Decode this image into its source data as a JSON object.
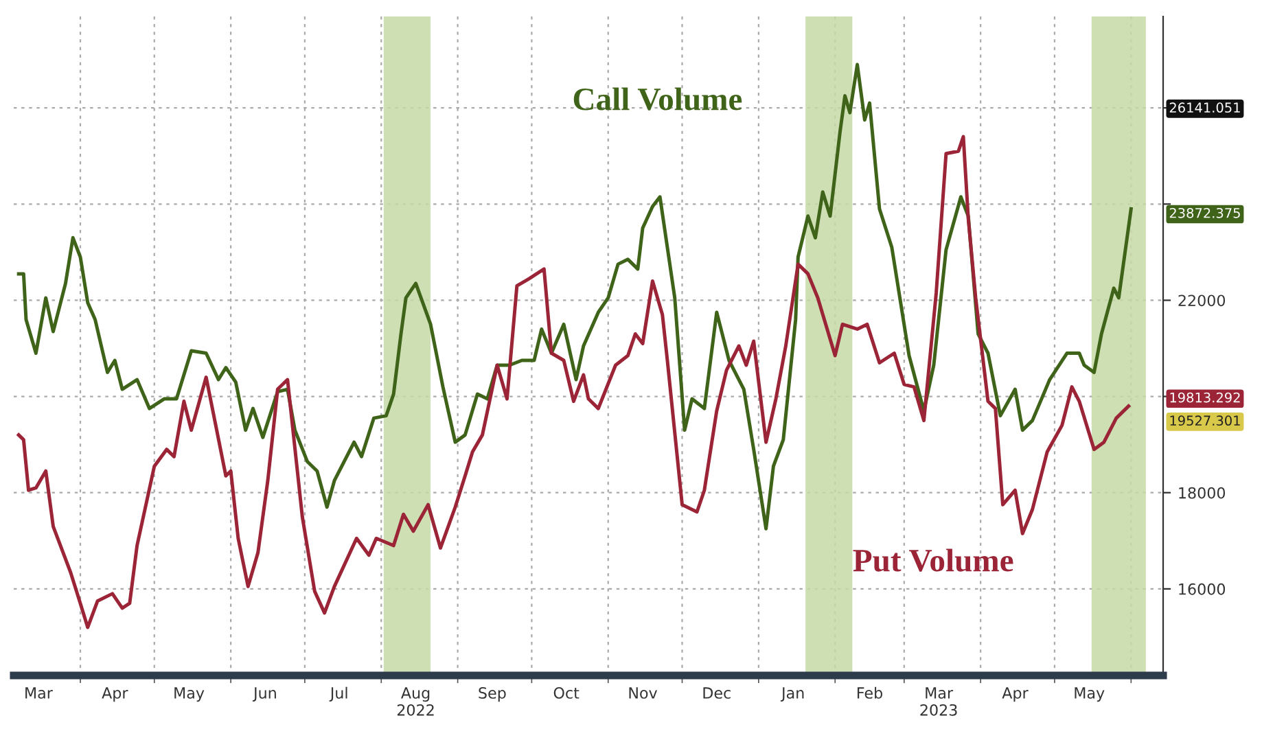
{
  "chart_data": {
    "type": "line",
    "series": [
      {
        "name": "Call Volume",
        "color": "#3f6419",
        "x": [
          "2022-03-07",
          "2022-03-09",
          "2022-03-10",
          "2022-03-14",
          "2022-03-18",
          "2022-03-21",
          "2022-03-26",
          "2022-03-29",
          "2022-04-01",
          "2022-04-04",
          "2022-04-07",
          "2022-04-12",
          "2022-04-15",
          "2022-04-18",
          "2022-04-24",
          "2022-04-29",
          "2022-05-05",
          "2022-05-10",
          "2022-05-16",
          "2022-05-22",
          "2022-05-27",
          "2022-05-30",
          "2022-06-03",
          "2022-06-07",
          "2022-06-10",
          "2022-06-14",
          "2022-06-20",
          "2022-06-24",
          "2022-06-27",
          "2022-07-02",
          "2022-07-06",
          "2022-07-10",
          "2022-07-13",
          "2022-07-21",
          "2022-07-24",
          "2022-07-29",
          "2022-08-03",
          "2022-08-06",
          "2022-08-09",
          "2022-08-11",
          "2022-08-15",
          "2022-08-21",
          "2022-08-26",
          "2022-08-31",
          "2022-09-04",
          "2022-09-09",
          "2022-09-13",
          "2022-09-17",
          "2022-09-22",
          "2022-09-27",
          "2022-10-02",
          "2022-10-05",
          "2022-10-09",
          "2022-10-14",
          "2022-10-19",
          "2022-10-22",
          "2022-10-28",
          "2022-11-01",
          "2022-11-05",
          "2022-11-09",
          "2022-11-13",
          "2022-11-15",
          "2022-11-19",
          "2022-11-22",
          "2022-11-25",
          "2022-11-28",
          "2022-12-02",
          "2022-12-05",
          "2022-12-10",
          "2022-12-15",
          "2022-12-20",
          "2022-12-26",
          "2022-12-30",
          "2023-01-04",
          "2023-01-07",
          "2023-01-11",
          "2023-01-16",
          "2023-01-17",
          "2023-01-21",
          "2023-01-24",
          "2023-01-27",
          "2023-01-30",
          "2023-02-03",
          "2023-02-05",
          "2023-02-07",
          "2023-02-10",
          "2023-02-13",
          "2023-02-15",
          "2023-02-19",
          "2023-02-24",
          "2023-03-03",
          "2023-03-09",
          "2023-03-13",
          "2023-03-18",
          "2023-03-24",
          "2023-03-27",
          "2023-03-31",
          "2023-04-04",
          "2023-04-09",
          "2023-04-15",
          "2023-04-18",
          "2023-04-22",
          "2023-04-29",
          "2023-05-06",
          "2023-05-11",
          "2023-05-13",
          "2023-05-17",
          "2023-05-20",
          "2023-05-25",
          "2023-05-27",
          "2023-06-01"
        ],
        "values": [
          22550,
          22550,
          21600,
          20900,
          22050,
          21350,
          22350,
          23300,
          22900,
          21950,
          21600,
          20500,
          20750,
          20150,
          20350,
          19750,
          19950,
          19950,
          20950,
          20900,
          20350,
          20600,
          20300,
          19300,
          19750,
          19150,
          20100,
          20150,
          19300,
          18650,
          18450,
          17700,
          18250,
          19050,
          18750,
          19550,
          19600,
          20050,
          21300,
          22050,
          22350,
          21500,
          20200,
          19050,
          19200,
          20050,
          19950,
          20650,
          20650,
          20750,
          20750,
          21400,
          20900,
          21500,
          20350,
          21050,
          21750,
          22050,
          22750,
          22850,
          22650,
          23500,
          23950,
          24150,
          23100,
          22050,
          19300,
          19950,
          19750,
          21750,
          20750,
          20150,
          18900,
          17250,
          18550,
          19100,
          21600,
          22900,
          23750,
          23300,
          24250,
          23750,
          25500,
          26250,
          25900,
          26900,
          25750,
          26100,
          23900,
          23100,
          20850,
          19700,
          20650,
          23050,
          24150,
          23750,
          21300,
          20900,
          19600,
          20150,
          19300,
          19500,
          20350,
          20900,
          20900,
          20650,
          20500,
          21300,
          22250,
          22050,
          23900
        ]
      },
      {
        "name": "Put Volume",
        "color": "#9b2436",
        "x": [
          "2022-03-07",
          "2022-03-09",
          "2022-03-11",
          "2022-03-14",
          "2022-03-18",
          "2022-03-21",
          "2022-03-28",
          "2022-04-01",
          "2022-04-04",
          "2022-04-08",
          "2022-04-14",
          "2022-04-18",
          "2022-04-21",
          "2022-04-24",
          "2022-05-01",
          "2022-05-06",
          "2022-05-09",
          "2022-05-13",
          "2022-05-16",
          "2022-05-22",
          "2022-05-30",
          "2022-06-01",
          "2022-06-04",
          "2022-06-08",
          "2022-06-12",
          "2022-06-16",
          "2022-06-20",
          "2022-06-24",
          "2022-06-30",
          "2022-07-05",
          "2022-07-09",
          "2022-07-13",
          "2022-07-22",
          "2022-07-27",
          "2022-07-30",
          "2022-08-06",
          "2022-08-10",
          "2022-08-14",
          "2022-08-20",
          "2022-08-25",
          "2022-08-31",
          "2022-09-04",
          "2022-09-07",
          "2022-09-11",
          "2022-09-17",
          "2022-09-21",
          "2022-09-25",
          "2022-09-30",
          "2022-10-06",
          "2022-10-09",
          "2022-10-14",
          "2022-10-18",
          "2022-10-22",
          "2022-10-24",
          "2022-10-28",
          "2022-11-04",
          "2022-11-09",
          "2022-11-12",
          "2022-11-15",
          "2022-11-19",
          "2022-11-23",
          "2022-11-25",
          "2022-12-01",
          "2022-12-07",
          "2022-12-10",
          "2022-12-15",
          "2022-12-19",
          "2022-12-24",
          "2022-12-27",
          "2022-12-30",
          "2023-01-04",
          "2023-01-08",
          "2023-01-12",
          "2023-01-17",
          "2023-01-21",
          "2023-01-25",
          "2023-02-01",
          "2023-02-04",
          "2023-02-10",
          "2023-02-14",
          "2023-02-19",
          "2023-02-25",
          "2023-03-01",
          "2023-03-05",
          "2023-03-09",
          "2023-03-14",
          "2023-03-18",
          "2023-03-23",
          "2023-03-25",
          "2023-03-27",
          "2023-03-30",
          "2023-04-04",
          "2023-04-07",
          "2023-04-10",
          "2023-04-15",
          "2023-04-18",
          "2023-04-22",
          "2023-04-28",
          "2023-05-04",
          "2023-05-08",
          "2023-05-11",
          "2023-05-17",
          "2023-05-21",
          "2023-05-26",
          "2023-05-31"
        ],
        "values": [
          19200,
          19100,
          18050,
          18100,
          18450,
          17300,
          16350,
          15700,
          15200,
          15750,
          15900,
          15600,
          15700,
          16900,
          18550,
          18900,
          18750,
          19900,
          19300,
          20400,
          18350,
          18450,
          17050,
          16050,
          16750,
          18250,
          20150,
          20350,
          17500,
          15950,
          15500,
          16050,
          17050,
          16700,
          17050,
          16900,
          17550,
          17200,
          17750,
          16850,
          17700,
          18350,
          18850,
          19200,
          20650,
          19950,
          22300,
          22450,
          22650,
          20900,
          20750,
          19900,
          20450,
          19950,
          19750,
          20650,
          20850,
          21300,
          21100,
          22400,
          21700,
          20750,
          17750,
          17600,
          18050,
          19700,
          20550,
          21050,
          20650,
          21150,
          19050,
          19950,
          21050,
          22750,
          22550,
          22050,
          20850,
          21500,
          21400,
          21500,
          20700,
          20900,
          20250,
          20200,
          19500,
          22150,
          25050,
          25100,
          25400,
          23700,
          22050,
          19900,
          19750,
          17750,
          18050,
          17150,
          17650,
          18850,
          19400,
          20200,
          19900,
          18900,
          19050,
          19550,
          19800
        ]
      }
    ],
    "xlim": [
      "2022-03-05",
      "2023-06-14"
    ],
    "xticks": [
      {
        "value": "2022-03-15",
        "label": "Mar"
      },
      {
        "value": "2022-04-01",
        "label": null
      },
      {
        "value": "2022-04-15",
        "label": "Apr"
      },
      {
        "value": "2022-05-01",
        "label": null
      },
      {
        "value": "2022-05-15",
        "label": "May"
      },
      {
        "value": "2022-06-01",
        "label": null
      },
      {
        "value": "2022-06-15",
        "label": "Jun"
      },
      {
        "value": "2022-07-01",
        "label": null
      },
      {
        "value": "2022-07-15",
        "label": "Jul"
      },
      {
        "value": "2022-08-01",
        "label": null
      },
      {
        "value": "2022-08-15",
        "label": "Aug\n2022"
      },
      {
        "value": "2022-09-01",
        "label": null
      },
      {
        "value": "2022-09-15",
        "label": "Sep"
      },
      {
        "value": "2022-10-01",
        "label": null
      },
      {
        "value": "2022-10-15",
        "label": "Oct"
      },
      {
        "value": "2022-11-01",
        "label": null
      },
      {
        "value": "2022-11-15",
        "label": "Nov"
      },
      {
        "value": "2022-12-01",
        "label": null
      },
      {
        "value": "2022-12-15",
        "label": "Dec"
      },
      {
        "value": "2023-01-01",
        "label": null
      },
      {
        "value": "2023-01-15",
        "label": "Jan"
      },
      {
        "value": "2023-02-01",
        "label": null
      },
      {
        "value": "2023-02-15",
        "label": "Feb"
      },
      {
        "value": "2023-03-01",
        "label": null
      },
      {
        "value": "2023-03-15",
        "label": "Mar\n2023"
      },
      {
        "value": "2023-04-01",
        "label": null
      },
      {
        "value": "2023-04-15",
        "label": "Apr"
      },
      {
        "value": "2023-05-01",
        "label": null
      },
      {
        "value": "2023-05-15",
        "label": "May"
      },
      {
        "value": "2023-06-01",
        "label": null
      }
    ],
    "ylim": [
      14200,
      27900
    ],
    "yticks": [
      16000,
      18000,
      {
        "value": 20000,
        "label": null
      },
      22000,
      {
        "value": 24000,
        "label": null
      },
      {
        "value": 26000,
        "label": null
      }
    ],
    "bands": [
      {
        "axis": "x",
        "from": "2022-08-02",
        "to": "2022-08-21",
        "color": "#c4d9a6"
      },
      {
        "axis": "x",
        "from": "2023-01-20",
        "to": "2023-02-08",
        "color": "#c4d9a6"
      },
      {
        "axis": "x",
        "from": "2023-05-16",
        "to": "2023-06-07",
        "color": "#c4d9a6"
      }
    ],
    "annotations": [
      "26141.051",
      "23872.375",
      "19813.292",
      "19527.301"
    ],
    "grid": true,
    "legend": false,
    "line_style": "solid",
    "marker": "none"
  }
}
